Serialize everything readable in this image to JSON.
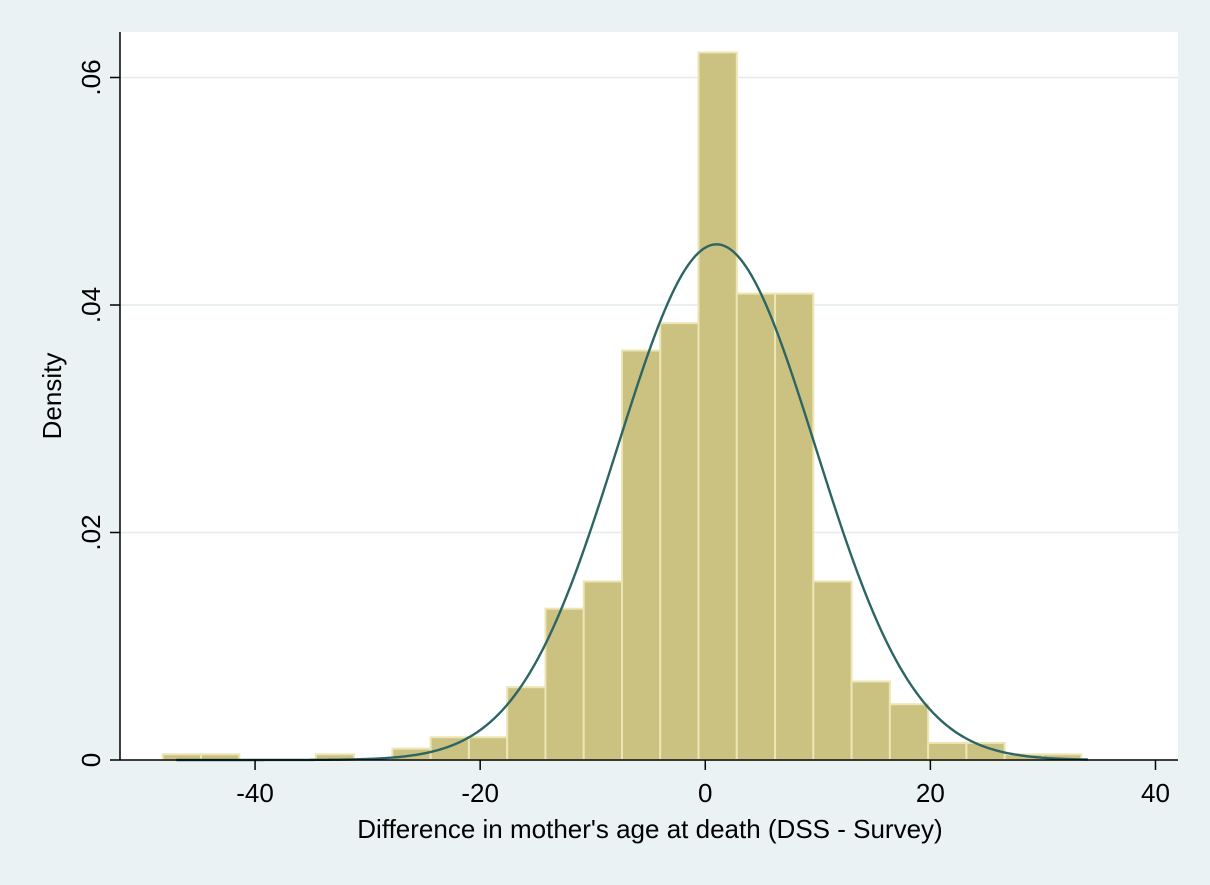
{
  "chart_data": {
    "type": "bar",
    "subtype": "histogram-with-normal-density",
    "title": "",
    "xlabel": "Difference in mother's age at death (DSS - Survey)",
    "ylabel": "Density",
    "xlim": [
      -52,
      42
    ],
    "ylim": [
      0,
      0.064
    ],
    "x_ticks": [
      -40,
      -20,
      0,
      20,
      40
    ],
    "x_tick_labels": [
      "-40",
      "-20",
      "0",
      "20",
      "40"
    ],
    "y_ticks": [
      0,
      0.02,
      0.04,
      0.06
    ],
    "y_tick_labels": [
      "0",
      ".02",
      ".04",
      ".06"
    ],
    "grid": "horizontal",
    "series": [
      {
        "name": "histogram",
        "bin_width": 3.4,
        "bin_starts": [
          -48.2,
          -44.8,
          -34.6,
          -27.8,
          -24.4,
          -21.0,
          -17.6,
          -14.2,
          -10.8,
          -7.4,
          -4.0,
          -0.6,
          2.8,
          6.2,
          9.6,
          13.0,
          16.4,
          19.8,
          23.2,
          26.6,
          30.0
        ],
        "values": [
          0.0005,
          0.0005,
          0.0005,
          0.001,
          0.002,
          0.002,
          0.0064,
          0.0133,
          0.0157,
          0.036,
          0.0384,
          0.0622,
          0.041,
          0.041,
          0.0157,
          0.0069,
          0.0049,
          0.0015,
          0.0015,
          0.0005,
          0.0005
        ]
      },
      {
        "name": "normal density",
        "mean": 1.0,
        "sd": 8.8
      }
    ],
    "colors": {
      "bar_fill": "#cbc181",
      "bar_edge": "#ece5b4",
      "curve": "#2c6563",
      "grid": "#e4ecec",
      "plot_bg": "#ffffff",
      "page_bg": "#eaf2f3"
    }
  }
}
